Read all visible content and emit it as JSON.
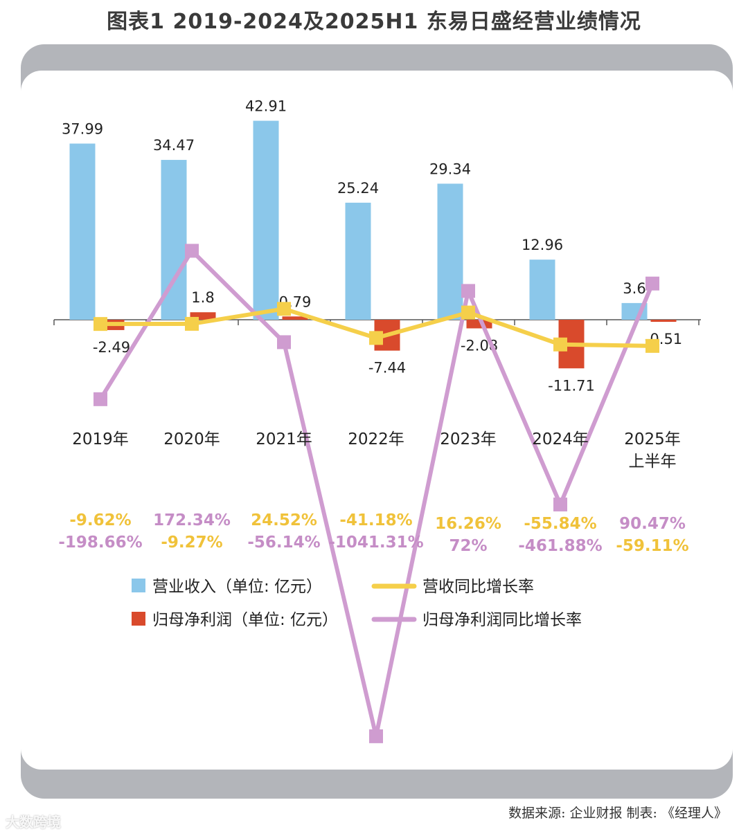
{
  "title": "图表1  2019-2024及2025H1 东易日盛经营业绩情况",
  "source": "数据来源: 企业财报  制表: 《经理人》",
  "watermark": "大数跨境",
  "colors": {
    "revenue": "#8bc7ea",
    "net_profit": "#d94a2c",
    "revenue_growth": "#f5cf4a",
    "profit_growth": "#cf9cd0",
    "revenue_growth_text": "#f0c23a",
    "profit_growth_text": "#c58dc6",
    "frame": "#b3b5ba"
  },
  "chart_data": {
    "type": "bar",
    "categories": [
      [
        "2019年"
      ],
      [
        "2020年"
      ],
      [
        "2021年"
      ],
      [
        "2022年"
      ],
      [
        "2023年"
      ],
      [
        "2024年"
      ],
      [
        "2025年",
        "上半年"
      ]
    ],
    "series": [
      {
        "name": "营业收入（单位: 亿元）",
        "kind": "bar",
        "values": [
          37.99,
          34.47,
          42.91,
          25.24,
          29.34,
          12.96,
          3.6
        ],
        "labels": [
          "37.99",
          "34.47",
          "42.91",
          "25.24",
          "29.34",
          "12.96",
          "3.6"
        ]
      },
      {
        "name": "归母净利润（单位: 亿元）",
        "kind": "bar",
        "values": [
          -2.49,
          1.8,
          0.79,
          -7.44,
          -2.08,
          -11.71,
          -0.51
        ],
        "labels": [
          "-2.49",
          "1.8",
          "0.79",
          "-7.44",
          "-2.08",
          "-11.71",
          "-0.51"
        ]
      },
      {
        "name": "营收同比增长率",
        "kind": "line",
        "values": [
          -9.62,
          -9.27,
          24.52,
          -41.18,
          16.26,
          -55.84,
          -59.11
        ],
        "labels": [
          "-9.62%",
          "-9.27%",
          "24.52%",
          "-41.18%",
          "16.26%",
          "-55.84%",
          "-59.11%"
        ]
      },
      {
        "name": "归母净利润同比增长率",
        "kind": "line",
        "values": [
          -198.66,
          172.34,
          -56.14,
          -1041.31,
          72,
          -461.88,
          90.47
        ],
        "labels": [
          "-198.66%",
          "172.34%",
          "-56.14%",
          "-1041.31%",
          "72%",
          "-461.88%",
          "90.47%"
        ]
      }
    ],
    "percent_rows": [
      [
        {
          "text": "-9.62%",
          "series": 2
        },
        {
          "text": "-198.66%",
          "series": 3
        }
      ],
      [
        {
          "text": "172.34%",
          "series": 3
        },
        {
          "text": "-9.27%",
          "series": 2
        }
      ],
      [
        {
          "text": "24.52%",
          "series": 2
        },
        {
          "text": "-56.14%",
          "series": 3
        }
      ],
      [
        {
          "text": "-41.18%",
          "series": 2
        },
        {
          "text": "-1041.31%",
          "series": 3
        }
      ],
      [
        {
          "text": "16.26%",
          "series": 2
        },
        {
          "text": "72%",
          "series": 3
        }
      ],
      [
        {
          "text": "-55.84%",
          "series": 2
        },
        {
          "text": "-461.88%",
          "series": 3
        }
      ],
      [
        {
          "text": "90.47%",
          "series": 3
        },
        {
          "text": "-59.11%",
          "series": 2
        }
      ]
    ],
    "grid": false,
    "legend_position": "bottom"
  }
}
